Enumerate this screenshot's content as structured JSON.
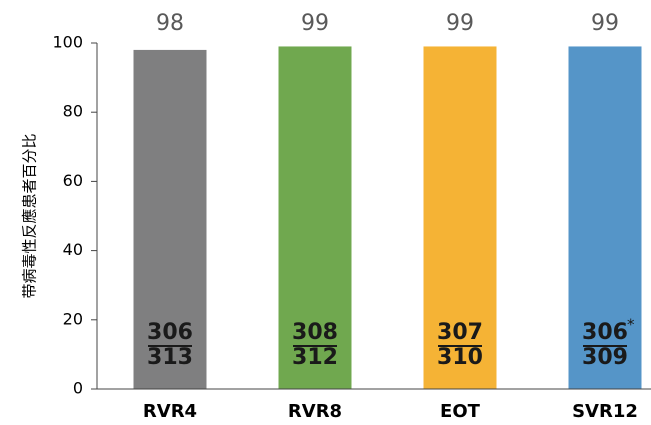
{
  "chart_data": {
    "type": "bar",
    "y_label": "带病毒性反應患者百分比",
    "categories": [
      "RVR4",
      "RVR8",
      "EOT",
      "SVR12"
    ],
    "values": [
      98,
      99,
      99,
      99
    ],
    "colors": [
      "#7f7f80",
      "#70a84f",
      "#f5b335",
      "#5595c8"
    ],
    "ylim": [
      0,
      100
    ],
    "yticks": [
      0,
      20,
      40,
      60,
      80,
      100
    ],
    "fractions": [
      {
        "numerator": "306",
        "denominator": "313"
      },
      {
        "numerator": "308",
        "denominator": "312"
      },
      {
        "numerator": "307",
        "denominator": "310"
      },
      {
        "numerator": "306",
        "mark": "*",
        "denominator": "309"
      }
    ]
  }
}
